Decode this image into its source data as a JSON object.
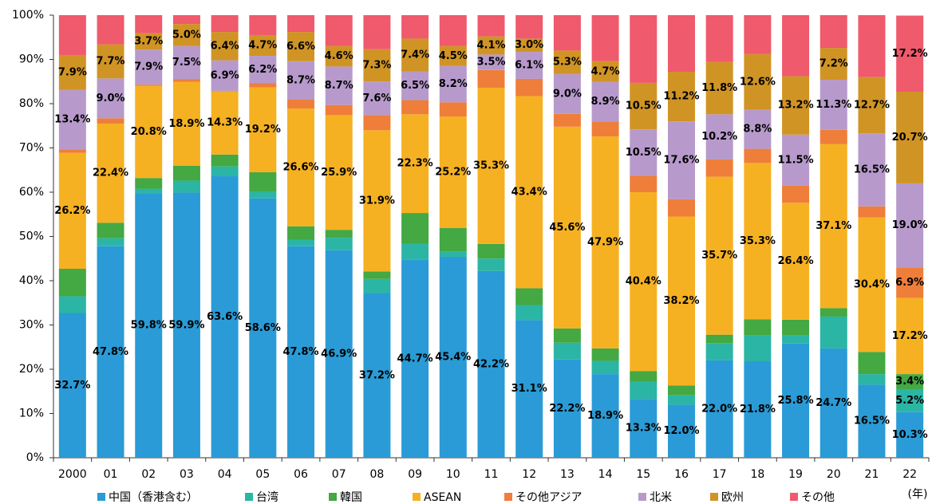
{
  "chart_data": {
    "type": "stacked_bar_100",
    "categories": [
      "2000",
      "01",
      "02",
      "03",
      "04",
      "05",
      "06",
      "07",
      "08",
      "09",
      "10",
      "11",
      "12",
      "13",
      "14",
      "15",
      "16",
      "17",
      "18",
      "19",
      "20",
      "21",
      "22"
    ],
    "x_unit": "(年)",
    "ylim": [
      0,
      100
    ],
    "yticks": [
      {
        "value": 0,
        "label": "0%"
      },
      {
        "value": 10,
        "label": "10%"
      },
      {
        "value": 20,
        "label": "20%"
      },
      {
        "value": 30,
        "label": "30%"
      },
      {
        "value": 40,
        "label": "40%"
      },
      {
        "value": 50,
        "label": "50%"
      },
      {
        "value": 60,
        "label": "60%"
      },
      {
        "value": 70,
        "label": "70%"
      },
      {
        "value": 80,
        "label": "80%"
      },
      {
        "value": 90,
        "label": "90%"
      },
      {
        "value": 100,
        "label": "100%"
      }
    ],
    "legend": "bottom",
    "series": [
      {
        "name": "中国（香港含む）",
        "color": "#2a9bd6",
        "values": [
          32.7,
          47.8,
          59.8,
          59.9,
          63.6,
          58.6,
          47.8,
          46.9,
          37.2,
          44.7,
          45.4,
          42.2,
          31.1,
          22.2,
          18.9,
          13.3,
          12.0,
          22.0,
          21.8,
          25.8,
          24.7,
          16.5,
          10.3
        ],
        "value_labels": [
          "32.7%",
          "47.8%",
          "59.8%",
          "59.9%",
          "63.6%",
          "58.6%",
          "47.8%",
          "46.9%",
          "37.2%",
          "44.7%",
          "45.4%",
          "42.2%",
          "31.1%",
          "22.2%",
          "18.9%",
          "13.3%",
          "12.0%",
          "22.0%",
          "21.8%",
          "25.8%",
          "24.7%",
          "16.5%",
          "10.3%"
        ]
      },
      {
        "name": "台湾",
        "color": "#2bb5a5",
        "values": [
          3.8,
          1.8,
          1.0,
          2.7,
          2.2,
          1.5,
          1.4,
          2.8,
          3.2,
          3.6,
          1.2,
          2.8,
          3.4,
          3.8,
          3.0,
          3.9,
          2.1,
          3.9,
          5.8,
          1.8,
          7.2,
          2.4,
          5.2
        ],
        "value_labels": [
          null,
          null,
          null,
          null,
          null,
          null,
          null,
          null,
          null,
          null,
          null,
          null,
          null,
          null,
          null,
          null,
          null,
          null,
          null,
          null,
          null,
          null,
          "5.2%"
        ]
      },
      {
        "name": "韓国",
        "color": "#44a843",
        "values": [
          6.2,
          3.5,
          2.4,
          3.4,
          2.7,
          4.4,
          3.1,
          1.8,
          1.7,
          7.0,
          5.3,
          3.3,
          3.8,
          3.2,
          2.8,
          2.4,
          2.2,
          1.9,
          3.7,
          3.6,
          1.9,
          5.0,
          3.4
        ],
        "value_labels": [
          null,
          null,
          null,
          null,
          null,
          null,
          null,
          null,
          null,
          null,
          null,
          null,
          null,
          null,
          null,
          null,
          null,
          null,
          null,
          null,
          null,
          null,
          "3.4%"
        ]
      },
      {
        "name": "ASEAN",
        "color": "#f5b122",
        "values": [
          26.2,
          22.4,
          20.8,
          18.9,
          14.3,
          19.2,
          26.6,
          25.9,
          31.9,
          22.3,
          25.2,
          35.3,
          43.4,
          45.6,
          47.9,
          40.4,
          38.2,
          35.7,
          35.3,
          26.4,
          37.1,
          30.4,
          17.2
        ],
        "value_labels": [
          "26.2%",
          "22.4%",
          "20.8%",
          "18.9%",
          "14.3%",
          "19.2%",
          "26.6%",
          "25.9%",
          "31.9%",
          "22.3%",
          "25.2%",
          "35.3%",
          "43.4%",
          "45.6%",
          "47.9%",
          "40.4%",
          "38.2%",
          "35.7%",
          "35.3%",
          "26.4%",
          "37.1%",
          "30.4%",
          "17.2%"
        ]
      },
      {
        "name": "その他アジア",
        "color": "#ef7e3a",
        "values": [
          0.8,
          1.2,
          0.3,
          0.6,
          0.1,
          0.9,
          2.0,
          2.3,
          3.4,
          3.2,
          3.2,
          4.0,
          3.9,
          2.9,
          3.4,
          3.7,
          3.9,
          3.9,
          3.2,
          3.9,
          3.2,
          2.5,
          6.9
        ],
        "value_labels": [
          null,
          null,
          null,
          null,
          null,
          null,
          null,
          null,
          null,
          null,
          null,
          null,
          null,
          null,
          null,
          null,
          null,
          null,
          null,
          null,
          null,
          null,
          "6.9%"
        ]
      },
      {
        "name": "北米",
        "color": "#b79acb",
        "values": [
          13.4,
          9.0,
          7.9,
          7.5,
          6.9,
          6.2,
          8.7,
          8.7,
          7.6,
          6.5,
          8.2,
          3.5,
          6.1,
          9.0,
          8.9,
          10.5,
          17.6,
          10.2,
          8.8,
          11.5,
          11.3,
          16.5,
          19.0
        ],
        "value_labels": [
          "13.4%",
          "9.0%",
          "7.9%",
          "7.5%",
          "6.9%",
          "6.2%",
          "8.7%",
          "8.7%",
          "7.6%",
          "6.5%",
          "8.2%",
          "3.5%",
          "6.1%",
          "9.0%",
          "8.9%",
          "10.5%",
          "17.6%",
          "10.2%",
          "8.8%",
          "11.5%",
          "11.3%",
          "16.5%",
          "19.0%"
        ]
      },
      {
        "name": "欧州",
        "color": "#d09425",
        "values": [
          7.9,
          7.7,
          3.7,
          5.0,
          6.4,
          4.7,
          6.6,
          4.6,
          7.3,
          7.4,
          4.5,
          4.1,
          3.0,
          5.3,
          4.7,
          10.5,
          11.2,
          11.8,
          12.6,
          13.2,
          7.2,
          12.7,
          20.7
        ],
        "value_labels": [
          "7.9%",
          "7.7%",
          "3.7%",
          "5.0%",
          "6.4%",
          "4.7%",
          "6.6%",
          "4.6%",
          "7.3%",
          "7.4%",
          "4.5%",
          "4.1%",
          "3.0%",
          "5.3%",
          "4.7%",
          "10.5%",
          "11.2%",
          "11.8%",
          "12.6%",
          "13.2%",
          "7.2%",
          "12.7%",
          "20.7%"
        ]
      },
      {
        "name": "その他",
        "color": "#ef5a6c",
        "values": [
          9.0,
          6.6,
          4.1,
          2.0,
          3.8,
          4.5,
          3.8,
          7.0,
          7.7,
          5.3,
          7.0,
          4.8,
          5.3,
          8.0,
          10.4,
          15.3,
          12.8,
          10.6,
          8.8,
          13.8,
          7.4,
          14.0,
          17.2
        ],
        "value_labels": [
          null,
          null,
          null,
          null,
          null,
          null,
          null,
          null,
          null,
          null,
          null,
          null,
          null,
          null,
          null,
          null,
          null,
          null,
          null,
          null,
          null,
          null,
          "17.2%"
        ]
      }
    ]
  }
}
